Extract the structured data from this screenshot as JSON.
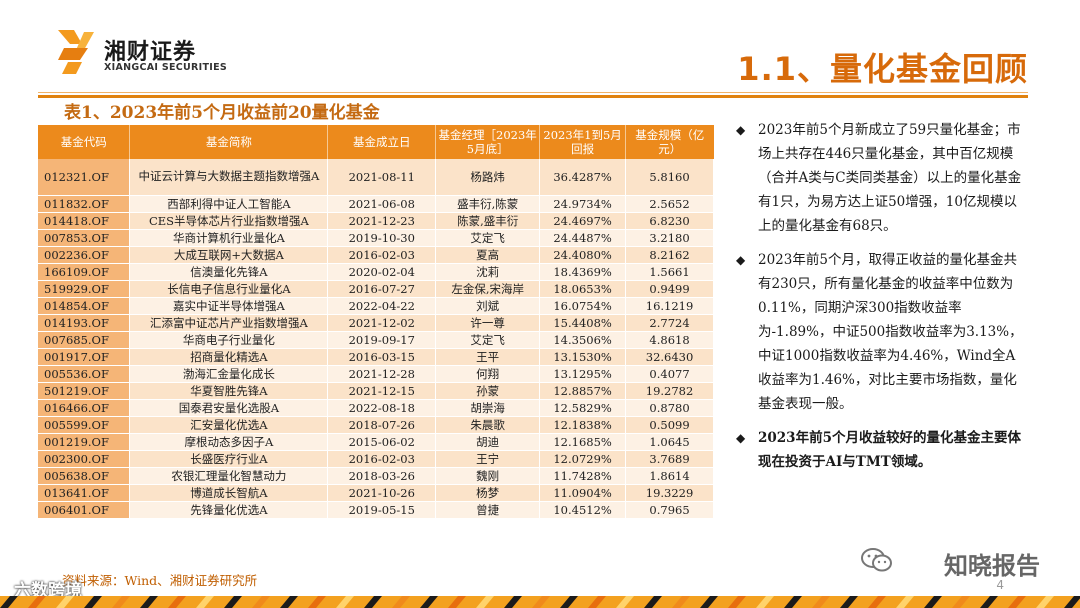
{
  "logo": {
    "name_cn": "湘财证券",
    "name_en": "XIANGCAI SECURITIES"
  },
  "page_title": "1.1、量化基金回顾",
  "table_caption": "表1、2023年前5个月收益前20量化基金",
  "table": {
    "headers": [
      "基金代码",
      "基金简称",
      "基金成立日",
      "基金经理［2023年5月底］",
      "2023年1到5月回报",
      "基金规模（亿元）"
    ],
    "rows": [
      [
        "012321.OF",
        "中证云计算与大数据主题指数增强A",
        "2021-08-11",
        "杨路炜",
        "36.4287%",
        "5.8160"
      ],
      [
        "011832.OF",
        "西部利得中证人工智能A",
        "2021-06-08",
        "盛丰衍,陈蒙",
        "24.9734%",
        "2.5652"
      ],
      [
        "014418.OF",
        "CES半导体芯片行业指数增强A",
        "2021-12-23",
        "陈蒙,盛丰衍",
        "24.4697%",
        "6.8230"
      ],
      [
        "007853.OF",
        "华商计算机行业量化A",
        "2019-10-30",
        "艾定飞",
        "24.4487%",
        "3.2180"
      ],
      [
        "002236.OF",
        "大成互联网+大数据A",
        "2016-02-03",
        "夏高",
        "24.4080%",
        "8.2162"
      ],
      [
        "166109.OF",
        "信澳量化先锋A",
        "2020-02-04",
        "沈莉",
        "18.4369%",
        "1.5661"
      ],
      [
        "519929.OF",
        "长信电子信息行业量化A",
        "2016-07-27",
        "左金保,宋海岸",
        "18.0653%",
        "0.9499"
      ],
      [
        "014854.OF",
        "嘉实中证半导体增强A",
        "2022-04-22",
        "刘斌",
        "16.0754%",
        "16.1219"
      ],
      [
        "014193.OF",
        "汇添富中证芯片产业指数增强A",
        "2021-12-02",
        "许一尊",
        "15.4408%",
        "2.7724"
      ],
      [
        "007685.OF",
        "华商电子行业量化",
        "2019-09-17",
        "艾定飞",
        "14.3506%",
        "4.8618"
      ],
      [
        "001917.OF",
        "招商量化精选A",
        "2016-03-15",
        "王平",
        "13.1530%",
        "32.6430"
      ],
      [
        "005536.OF",
        "渤海汇金量化成长",
        "2021-12-28",
        "何翔",
        "13.1295%",
        "0.4077"
      ],
      [
        "501219.OF",
        "华夏智胜先锋A",
        "2021-12-15",
        "孙蒙",
        "12.8857%",
        "19.2782"
      ],
      [
        "016466.OF",
        "国泰君安量化选股A",
        "2022-08-18",
        "胡崇海",
        "12.5829%",
        "0.8780"
      ],
      [
        "005599.OF",
        "汇安量化优选A",
        "2018-07-26",
        "朱晨歌",
        "12.1838%",
        "0.5099"
      ],
      [
        "001219.OF",
        "摩根动态多因子A",
        "2015-06-02",
        "胡迪",
        "12.1685%",
        "1.0645"
      ],
      [
        "002300.OF",
        "长盛医疗行业A",
        "2016-02-03",
        "王宁",
        "12.0729%",
        "3.7689"
      ],
      [
        "005638.OF",
        "农银汇理量化智慧动力",
        "2018-03-26",
        "魏刚",
        "11.7428%",
        "1.8614"
      ],
      [
        "013641.OF",
        "博道成长智航A",
        "2021-10-26",
        "杨梦",
        "11.0904%",
        "19.3229"
      ],
      [
        "006401.OF",
        "先锋量化优选A",
        "2019-05-15",
        "曾捷",
        "10.4512%",
        "0.7965"
      ]
    ]
  },
  "bullets": [
    {
      "text": "2023年前5个月新成立了59只量化基金；市场上共存在446只量化基金，其中百亿规模（合并A类与C类同类基金）以上的量化基金有1只，为易方达上证50增强，10亿规模以上的量化基金有68只。",
      "bold": false
    },
    {
      "text": "2023年前5个月，取得正收益的量化基金共有230只，所有量化基金的收益率中位数为0.11%，同期沪深300指数收益率为-1.89%，中证500指数收益率为3.13%，中证1000指数收益率为4.46%，Wind全A收益率为1.46%，对比主要市场指数，量化基金表现一般。",
      "bold": false
    },
    {
      "text": "2023年前5个月收益较好的量化基金主要体现在投资于AI与TMT领域。",
      "bold": true
    }
  ],
  "source": "资料来源：Wind、湘财证券研究所",
  "watermark_left": "六数跨境",
  "watermark_right": "知晓报告",
  "page_number": "4",
  "colors": {
    "accent": "#e0820f",
    "header_bg": "#ec8a1c",
    "title": "#d76a0a"
  }
}
